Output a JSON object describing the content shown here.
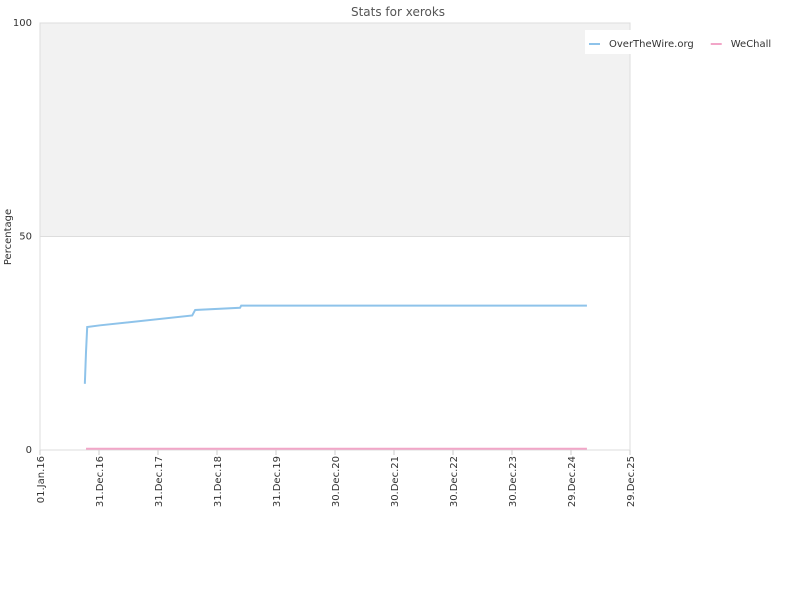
{
  "chart_data": {
    "type": "line",
    "title": "Stats for xeroks",
    "y_label": "Percentage",
    "xlim": [
      2016,
      2026
    ],
    "xticks": [
      {
        "value": 2016,
        "label": "01.Jan.16"
      },
      {
        "value": 2017,
        "label": "31.Dec.16"
      },
      {
        "value": 2018,
        "label": "31.Dec.17"
      },
      {
        "value": 2019,
        "label": "31.Dec.18"
      },
      {
        "value": 2020,
        "label": "31.Dec.19"
      },
      {
        "value": 2021,
        "label": "30.Dec.20"
      },
      {
        "value": 2022,
        "label": "30.Dec.21"
      },
      {
        "value": 2023,
        "label": "30.Dec.22"
      },
      {
        "value": 2024,
        "label": "30.Dec.23"
      },
      {
        "value": 2025,
        "label": "29.Dec.24"
      },
      {
        "value": 2026,
        "label": "29.Dec.25"
      }
    ],
    "ylim": [
      0,
      100
    ],
    "yticks": [
      0,
      50,
      100
    ],
    "series": [
      {
        "name": "OverTheWire.org",
        "color": "#8ec3ea",
        "x": [
          2016.76,
          2016.78,
          2016.8,
          2017.02,
          2018.58,
          2018.63,
          2019.39,
          2019.41,
          2025.27
        ],
        "values": [
          15.5,
          23,
          28.8,
          29.2,
          31.5,
          32.8,
          33.3,
          33.8,
          33.8
        ]
      },
      {
        "name": "WeChall",
        "color": "#f2a6c8",
        "x": [
          2016.78,
          2025.27
        ],
        "values": [
          0.3,
          0.3
        ]
      }
    ]
  }
}
